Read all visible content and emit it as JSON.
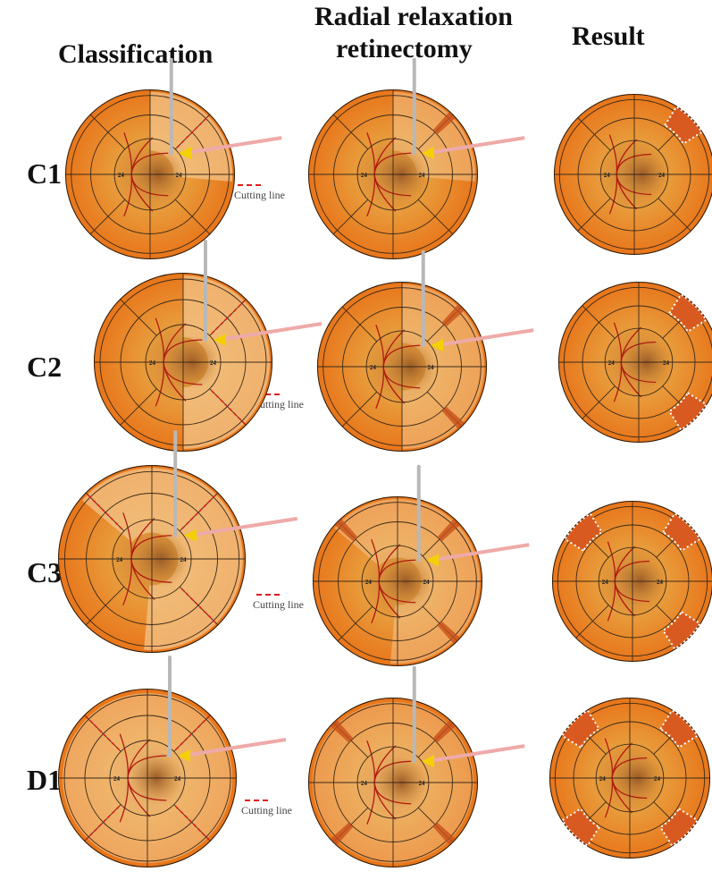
{
  "headers": {
    "classification": "Classification",
    "retinectomy_line1": "Radial relaxation",
    "retinectomy_line2": "retinectomy",
    "result": "Result"
  },
  "rows": [
    {
      "label": "C1",
      "legend": "Cutting line"
    },
    {
      "label": "C2",
      "legend": "Cutting line"
    },
    {
      "label": "C3",
      "legend": "Cutting line"
    },
    {
      "label": "D1",
      "legend": "Cutting line"
    }
  ],
  "fundus_tick_label": "24",
  "colors": {
    "fundus": "#e8821e",
    "detached": "#f3c48a",
    "cut": "#e01b1b",
    "vessel": "#b01a10",
    "probe": "#b8b8b8",
    "light_pipe": "#eeaaa8",
    "arrow": "#f5d000"
  }
}
